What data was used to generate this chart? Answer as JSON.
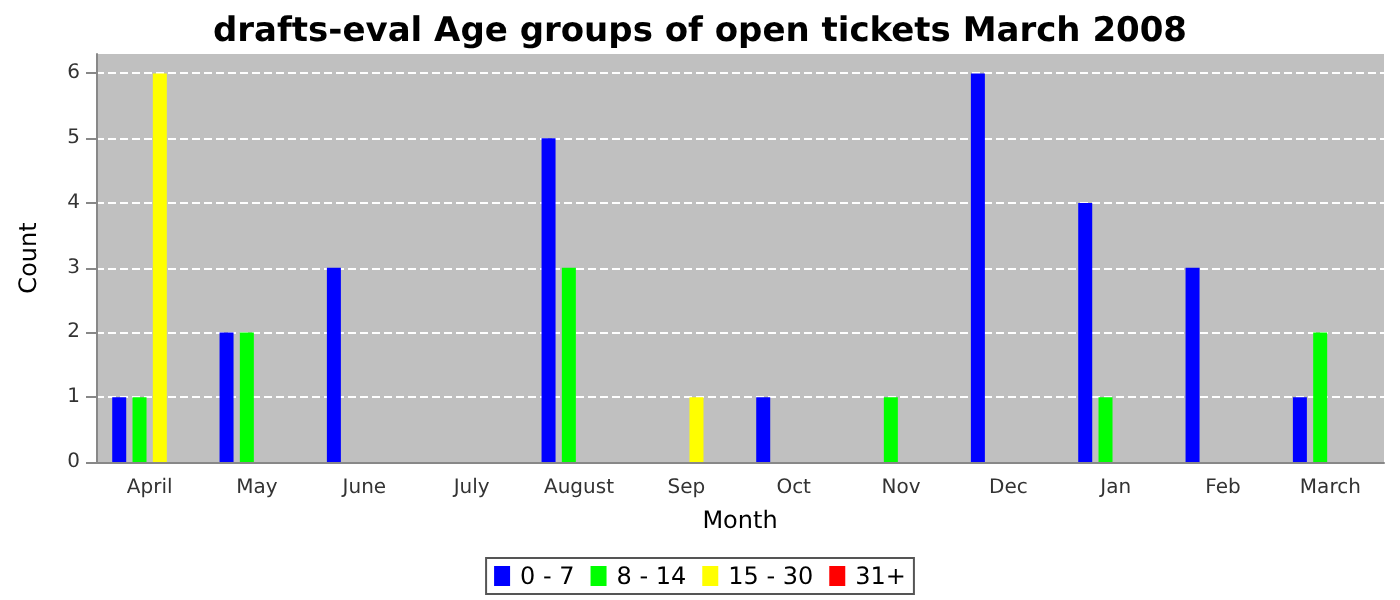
{
  "chart_data": {
    "type": "bar",
    "title": "drafts-eval Age groups of open tickets March 2008",
    "xlabel": "Month",
    "ylabel": "Count",
    "categories": [
      "April",
      "May",
      "June",
      "July",
      "August",
      "Sep",
      "Oct",
      "Nov",
      "Dec",
      "Jan",
      "Feb",
      "March"
    ],
    "series": [
      {
        "name": "0 - 7",
        "color": "#0000ff",
        "values": [
          1,
          2,
          3,
          0,
          5,
          0,
          1,
          0,
          6,
          4,
          3,
          1
        ]
      },
      {
        "name": "8 - 14",
        "color": "#00ff00",
        "values": [
          1,
          2,
          0,
          0,
          3,
          0,
          0,
          1,
          0,
          1,
          0,
          2
        ]
      },
      {
        "name": "15 - 30",
        "color": "#ffff00",
        "values": [
          6,
          0,
          0,
          0,
          0,
          1,
          0,
          0,
          0,
          0,
          0,
          0
        ]
      },
      {
        "name": "31+",
        "color": "#ff0000",
        "values": [
          0,
          0,
          0,
          0,
          0,
          0,
          0,
          0,
          0,
          0,
          0,
          0
        ]
      }
    ],
    "ylim": [
      0,
      6.3
    ],
    "yticks": [
      0,
      1,
      2,
      3,
      4,
      5,
      6
    ],
    "grid": "y",
    "legend": "bottom"
  }
}
